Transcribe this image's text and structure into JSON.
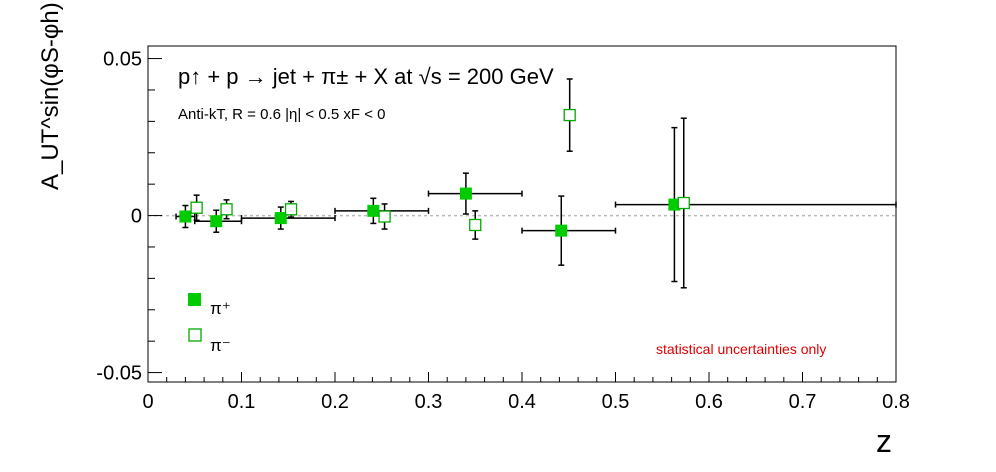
{
  "chart_data": {
    "type": "scatter",
    "title": "",
    "header": {
      "reaction": "p↑ + p → jet + π± + X at  √s = 200 GeV",
      "cuts": "Anti-kT, R = 0.6   |η| < 0.5   xF < 0"
    },
    "xlabel": "z",
    "ylabel": "A_UT^sin(φS-φh)",
    "xlim": [
      0,
      0.8
    ],
    "ylim": [
      -0.053,
      0.054
    ],
    "x_ticks": [
      "0",
      "0.1",
      "0.2",
      "0.3",
      "0.4",
      "0.5",
      "0.6",
      "0.7",
      "0.8"
    ],
    "y_ticks": [
      "-0.05",
      "0",
      "0.05"
    ],
    "note": "statistical uncertainties only",
    "legend": {
      "position": "bottom-left",
      "entries": [
        "π⁺",
        "π⁻"
      ]
    },
    "series": [
      {
        "name": "π⁺",
        "marker": "filled-square",
        "color": "#00cc00",
        "points": [
          {
            "x": 0.04,
            "y": -0.0003,
            "xerr": [
              0.03,
              0.05
            ],
            "yerr": 0.0035
          },
          {
            "x": 0.073,
            "y": -0.0018,
            "xerr": [
              0.05,
              0.1
            ],
            "yerr": 0.0035
          },
          {
            "x": 0.142,
            "y": -0.0008,
            "xerr": [
              0.1,
              0.2
            ],
            "yerr": 0.0035
          },
          {
            "x": 0.241,
            "y": 0.0015,
            "xerr": [
              0.2,
              0.3
            ],
            "yerr": 0.004
          },
          {
            "x": 0.34,
            "y": 0.007,
            "xerr": [
              0.3,
              0.4
            ],
            "yerr": 0.0065
          },
          {
            "x": 0.442,
            "y": -0.0048,
            "xerr": [
              0.4,
              0.5
            ],
            "yerr": 0.011
          },
          {
            "x": 0.563,
            "y": 0.0035,
            "xerr": [
              0.5,
              0.8
            ],
            "yerr": 0.0245
          }
        ]
      },
      {
        "name": "π⁻",
        "marker": "open-square",
        "color": "#00cc00",
        "points": [
          {
            "x": 0.052,
            "y": 0.0025,
            "yerr": 0.004
          },
          {
            "x": 0.084,
            "y": 0.002,
            "yerr": 0.003
          },
          {
            "x": 0.153,
            "y": 0.002,
            "yerr": 0.0025
          },
          {
            "x": 0.253,
            "y": -0.0003,
            "yerr": 0.004
          },
          {
            "x": 0.35,
            "y": -0.003,
            "yerr": 0.0045
          },
          {
            "x": 0.451,
            "y": 0.032,
            "yerr": 0.0115
          },
          {
            "x": 0.573,
            "y": 0.004,
            "yerr": 0.027
          }
        ]
      }
    ],
    "reference_line": {
      "y": 0,
      "style": "dotted",
      "color": "#bbbbbb"
    }
  }
}
